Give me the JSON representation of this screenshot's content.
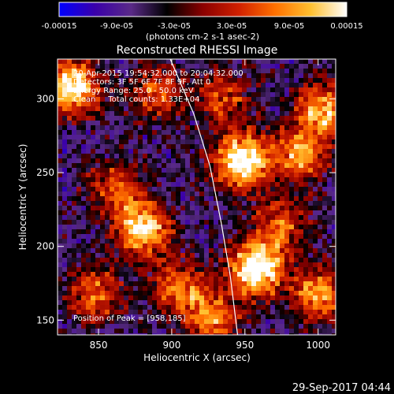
{
  "chart_data": {
    "type": "heatmap",
    "title": "Reconstructed RHESSI Image",
    "xlabel": "Heliocentric X (arcsec)",
    "ylabel": "Heliocentric Y (arcsec)",
    "xlim": [
      822,
      1012
    ],
    "ylim": [
      140,
      327
    ],
    "xticks": [
      850,
      900,
      950,
      1000
    ],
    "yticks": [
      150,
      200,
      250,
      300
    ],
    "colorbar": {
      "range": [
        -0.00015,
        0.00015
      ],
      "tick_labels": [
        "-0.00015",
        "-9.0e-05",
        "-3.0e-05",
        "3.0e-05",
        "9.0e-05",
        "0.00015"
      ],
      "units_label": "(photons cm-2 s-1 asec-2)",
      "colormap": [
        "#0000ff",
        "#3a00aa",
        "#5a2a88",
        "#000000",
        "#8b0000",
        "#d02000",
        "#ff7000",
        "#ffc030",
        "#ffffff"
      ]
    },
    "annotations": {
      "time_range": "20-Apr-2015 19:54:32.000 to 20:04:32.000",
      "detectors": "Detectors: 3F 5F 6F 7F 8F 9F, Att 0",
      "energy_range": "Energy Range: 25.0 - 50.0 keV",
      "algorithm": "Clean     Total counts: 1.33E+04",
      "peak": "Position of Peak = [958,185]"
    },
    "limb_curve": [
      [
        899,
        327
      ],
      [
        915,
        290
      ],
      [
        926,
        255
      ],
      [
        934,
        215
      ],
      [
        940,
        180
      ],
      [
        945,
        140
      ]
    ],
    "bright_regions": [
      {
        "x": 948,
        "y": 258,
        "intensity": 0.95
      },
      {
        "x": 958,
        "y": 185,
        "intensity": 1.0
      },
      {
        "x": 880,
        "y": 212,
        "intensity": 0.85
      },
      {
        "x": 832,
        "y": 308,
        "intensity": 0.9
      },
      {
        "x": 1003,
        "y": 292,
        "intensity": 0.7
      },
      {
        "x": 988,
        "y": 262,
        "intensity": 0.6
      },
      {
        "x": 1000,
        "y": 168,
        "intensity": 0.65
      },
      {
        "x": 905,
        "y": 172,
        "intensity": 0.55
      },
      {
        "x": 928,
        "y": 150,
        "intensity": 0.6
      },
      {
        "x": 848,
        "y": 168,
        "intensity": 0.55
      },
      {
        "x": 890,
        "y": 305,
        "intensity": 0.5
      },
      {
        "x": 975,
        "y": 215,
        "intensity": 0.5
      },
      {
        "x": 860,
        "y": 240,
        "intensity": 0.45
      },
      {
        "x": 935,
        "y": 300,
        "intensity": 0.45
      }
    ]
  },
  "footer": {
    "timestamp": "29-Sep-2017 04:44"
  }
}
